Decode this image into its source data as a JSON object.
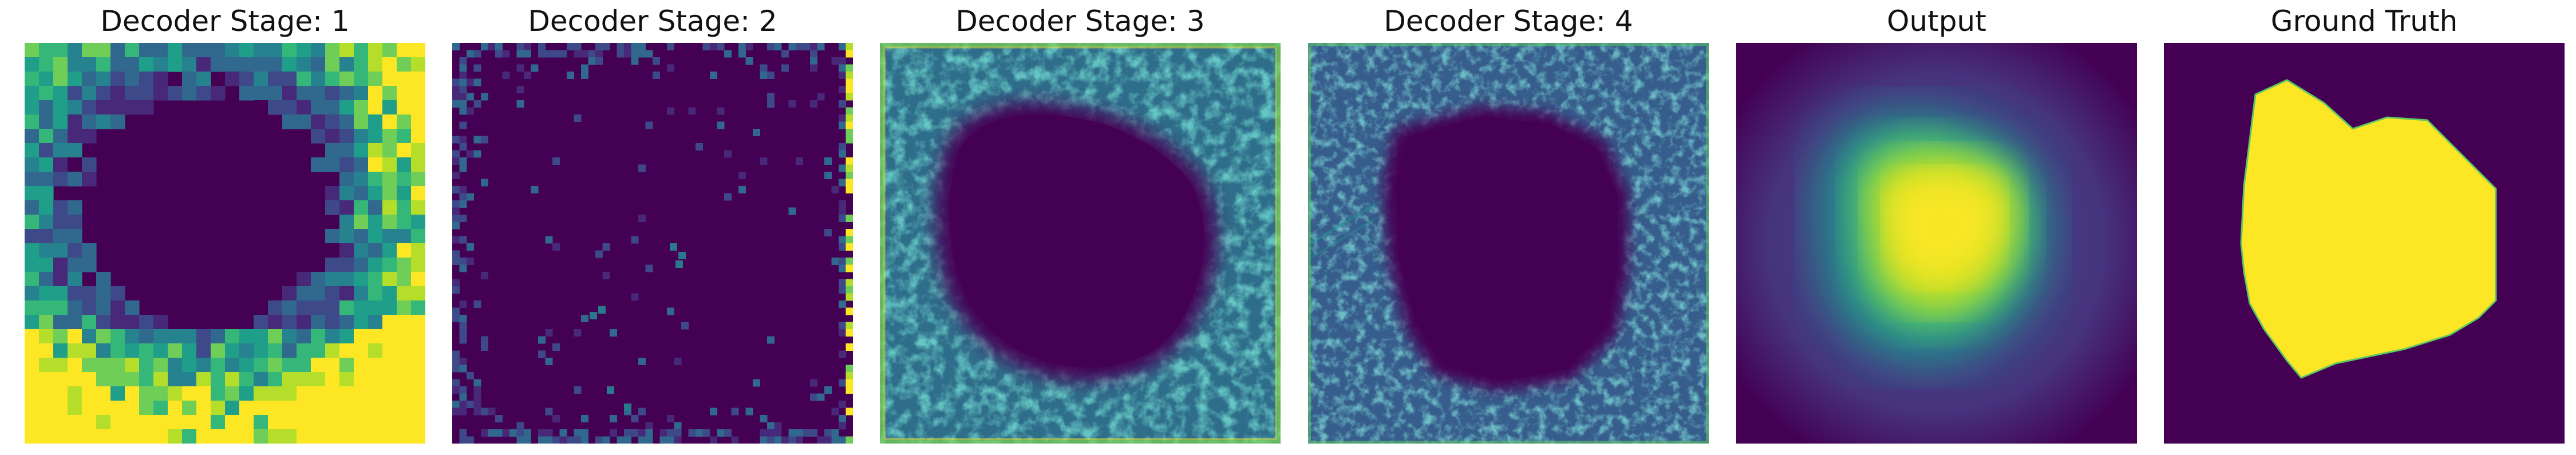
{
  "figure": {
    "panels": [
      {
        "title": "Decoder Stage: 1",
        "kind": "pixelated_heatmap"
      },
      {
        "title": "Decoder Stage: 2",
        "kind": "sparse_heatmap"
      },
      {
        "title": "Decoder Stage: 3",
        "kind": "textured_ring_heatmap"
      },
      {
        "title": "Decoder Stage: 4",
        "kind": "textured_ring_heatmap"
      },
      {
        "title": "Output",
        "kind": "smooth_probability_map"
      },
      {
        "title": "Ground Truth",
        "kind": "binary_mask"
      }
    ],
    "colormap": "viridis",
    "colors": {
      "viridis_low": "#440154",
      "viridis_mid": "#21918c",
      "viridis_high": "#fde725"
    }
  }
}
